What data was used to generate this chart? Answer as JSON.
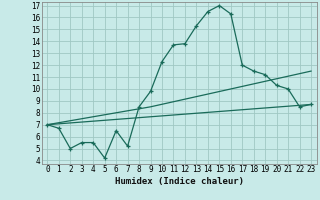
{
  "xlabel": "Humidex (Indice chaleur)",
  "bg_color": "#c8eae8",
  "grid_color": "#a0c8c4",
  "line_color": "#1a6b5a",
  "xlim": [
    -0.5,
    23.5
  ],
  "ylim": [
    3.7,
    17.3
  ],
  "xticks": [
    0,
    1,
    2,
    3,
    4,
    5,
    6,
    7,
    8,
    9,
    10,
    11,
    12,
    13,
    14,
    15,
    16,
    17,
    18,
    19,
    20,
    21,
    22,
    23
  ],
  "yticks": [
    4,
    5,
    6,
    7,
    8,
    9,
    10,
    11,
    12,
    13,
    14,
    15,
    16,
    17
  ],
  "line1_x": [
    0,
    1,
    2,
    3,
    4,
    5,
    6,
    7,
    8,
    9,
    10,
    11,
    12,
    13,
    14,
    15,
    16,
    17,
    18,
    19,
    20,
    21,
    22,
    23
  ],
  "line1_y": [
    7.0,
    6.7,
    5.0,
    5.5,
    5.5,
    4.2,
    6.5,
    5.2,
    8.5,
    9.8,
    12.3,
    13.7,
    13.8,
    15.3,
    16.5,
    17.0,
    16.3,
    12.0,
    11.5,
    11.2,
    10.3,
    10.0,
    8.5,
    8.7
  ],
  "line2_x": [
    0,
    23
  ],
  "line2_y": [
    7.0,
    8.7
  ],
  "line3_x": [
    0,
    9,
    23
  ],
  "line3_y": [
    7.0,
    8.5,
    11.5
  ]
}
